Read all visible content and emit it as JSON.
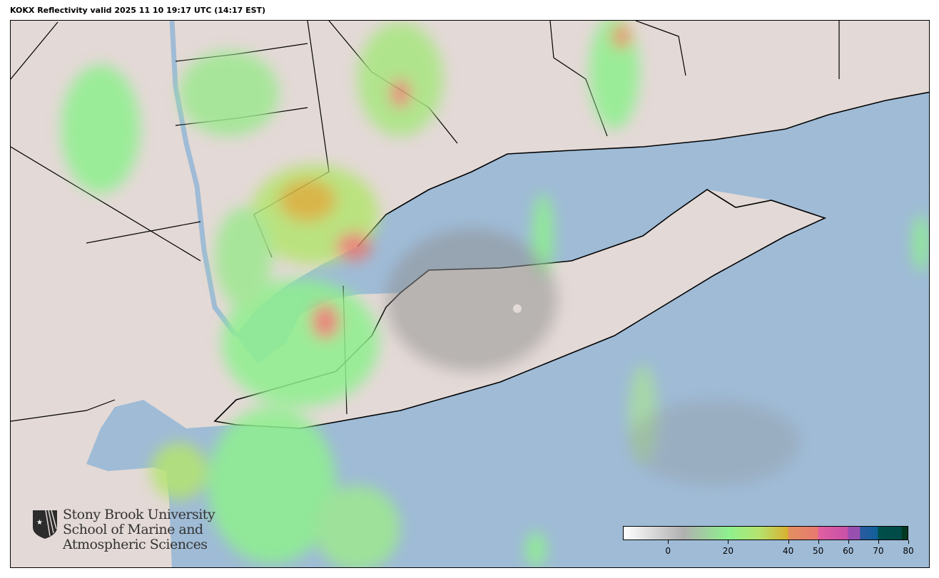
{
  "title": "KOKX Reflectivity valid 2025 11 10 19:17 UTC (14:17 EST)",
  "map": {
    "land_color": "#e3d9d6",
    "water_color": "#9fbbd6",
    "boundary_color": "#000000"
  },
  "logo": {
    "lines": [
      "Stony Brook University",
      "School of Marine and",
      "Atmospheric Sciences"
    ],
    "icon": "shield-star-icon"
  },
  "colorbar": {
    "range": [
      -15,
      80
    ],
    "ticks": [
      0,
      20,
      40,
      50,
      60,
      70,
      80
    ],
    "stops": [
      {
        "value": -15,
        "color": "#ffffff"
      },
      {
        "value": 5,
        "color": "#b0b0b0"
      },
      {
        "value": 20,
        "color": "#8ef08e"
      },
      {
        "value": 30,
        "color": "#b4e470"
      },
      {
        "value": 40,
        "color": "#d8b030"
      },
      {
        "value": 40.1,
        "color": "#e29060"
      },
      {
        "value": 50,
        "color": "#e87a70"
      },
      {
        "value": 50.1,
        "color": "#e060a0"
      },
      {
        "value": 60,
        "color": "#c850a8"
      },
      {
        "value": 60.1,
        "color": "#9850b0"
      },
      {
        "value": 64,
        "color": "#9850b0"
      },
      {
        "value": 64.1,
        "color": "#2c5aa0"
      },
      {
        "value": 70,
        "color": "#10609a"
      },
      {
        "value": 70.1,
        "color": "#00504c"
      },
      {
        "value": 78,
        "color": "#004a48"
      },
      {
        "value": 78.1,
        "color": "#003820"
      },
      {
        "value": 80,
        "color": "#003820"
      }
    ]
  }
}
